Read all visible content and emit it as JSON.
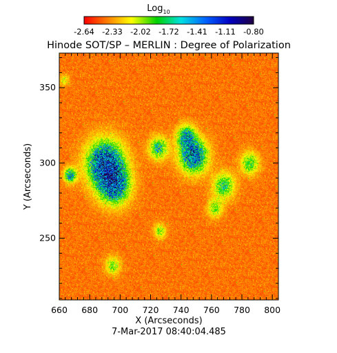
{
  "chart_data": {
    "type": "heatmap",
    "title": "Hinode SOT/SP – MERLIN : Degree of Polarization",
    "xlabel": "X (Arcseconds)",
    "ylabel": "Y (Arcseconds)",
    "timestamp": "7-Mar-2017 08:40:04.485",
    "colorbar": {
      "label_main": "Log",
      "label_sub": "10",
      "ticks": [
        "-2.64",
        "-2.33",
        "-2.02",
        "-1.72",
        "-1.41",
        "-1.11",
        "-0.80"
      ],
      "range": [
        -2.64,
        -0.8
      ],
      "colormap": [
        "#ff0000",
        "#ff8000",
        "#ffff00",
        "#00d000",
        "#00e0e0",
        "#0060ff",
        "#0000c0",
        "#200040"
      ]
    },
    "xlim": [
      660,
      804
    ],
    "ylim": [
      209,
      373
    ],
    "xticks": [
      "660",
      "680",
      "700",
      "720",
      "740",
      "760",
      "780",
      "800"
    ],
    "yticks": [
      "250",
      "300",
      "350"
    ],
    "x_tick_values": [
      660,
      680,
      700,
      720,
      740,
      760,
      780,
      800
    ],
    "y_tick_values": [
      250,
      300,
      350
    ],
    "active_regions": [
      {
        "x": 690,
        "y": 300,
        "spread": 12,
        "strength": 1.0
      },
      {
        "x": 696,
        "y": 285,
        "spread": 10,
        "strength": 0.8
      },
      {
        "x": 748,
        "y": 305,
        "spread": 9,
        "strength": 0.9
      },
      {
        "x": 743,
        "y": 318,
        "spread": 6,
        "strength": 0.6
      },
      {
        "x": 667,
        "y": 292,
        "spread": 4,
        "strength": 0.7
      },
      {
        "x": 725,
        "y": 310,
        "spread": 6,
        "strength": 0.6
      },
      {
        "x": 768,
        "y": 285,
        "spread": 7,
        "strength": 0.55
      },
      {
        "x": 785,
        "y": 300,
        "spread": 6,
        "strength": 0.5
      },
      {
        "x": 726,
        "y": 255,
        "spread": 4,
        "strength": 0.4
      },
      {
        "x": 695,
        "y": 232,
        "spread": 5,
        "strength": 0.4
      },
      {
        "x": 663,
        "y": 355,
        "spread": 3,
        "strength": 0.3
      },
      {
        "x": 762,
        "y": 270,
        "spread": 5,
        "strength": 0.4
      }
    ]
  }
}
